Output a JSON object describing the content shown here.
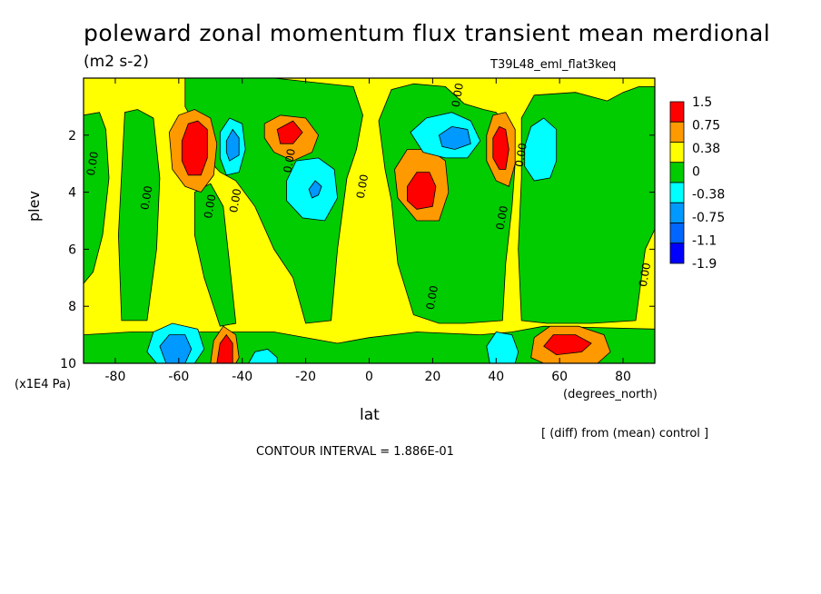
{
  "header": {
    "title": "poleward zonal momentum flux transient mean merdional",
    "units": "(m2 s-2)",
    "dataset": "T39L48_eml_flat3keq"
  },
  "footer": {
    "diff_note": "[ (diff) from (mean) control ]",
    "contour_note": "CONTOUR INTERVAL = 1.886E-01"
  },
  "chart_data": {
    "type": "heatmap",
    "title": "poleward zonal momentum flux transient mean merdional",
    "subtitle": "(m2 s-2)",
    "xlabel": "lat",
    "x_units": "(degrees_north)",
    "ylabel": "plev",
    "y_units": "(x1E4 Pa)",
    "xlim": [
      -90,
      90
    ],
    "ylim": [
      10,
      0
    ],
    "x_ticks": [
      -80,
      -60,
      -40,
      -20,
      0,
      20,
      40,
      60,
      80
    ],
    "y_ticks": [
      2,
      4,
      6,
      8,
      10
    ],
    "legend": {
      "placement": "right",
      "levels": [
        "1.5",
        "0.75",
        "0.38",
        "0",
        "-0.38",
        "-0.75",
        "-1.1",
        "-1.9"
      ],
      "colors": [
        "#ff0000",
        "#ff9900",
        "#ffff00",
        "#00cc00",
        "#00ffff",
        "#0099ff",
        "#0066ff",
        "#0000ff"
      ]
    },
    "colors": {
      "strong_positive": "#ff0000",
      "positive": "#ff9900",
      "weak_positive": "#ffff00",
      "weak_negative": "#00cc00",
      "negative": "#00ffff",
      "strong_negative": "#0099ff"
    },
    "contour_labels": [
      {
        "text": "0.00",
        "lat": -87,
        "plev": 3.0
      },
      {
        "text": "0.00",
        "lat": -70,
        "plev": 4.2
      },
      {
        "text": "0.00",
        "lat": -50,
        "plev": 4.5
      },
      {
        "text": "0.00",
        "lat": -42,
        "plev": 4.3
      },
      {
        "text": "0.00",
        "lat": -25,
        "plev": 2.9
      },
      {
        "text": "0.00",
        "lat": -2,
        "plev": 3.8
      },
      {
        "text": "0.00",
        "lat": 28,
        "plev": 0.6
      },
      {
        "text": "0.00",
        "lat": 20,
        "plev": 7.7
      },
      {
        "text": "0.00",
        "lat": 42,
        "plev": 4.9
      },
      {
        "text": "0.00",
        "lat": 48,
        "plev": 2.7
      },
      {
        "text": "0.00",
        "lat": 87,
        "plev": 6.9
      }
    ],
    "features": [
      {
        "sign": "positive",
        "lat": -55,
        "plev": 2.5,
        "peak": 1.5
      },
      {
        "sign": "negative",
        "lat": -44,
        "plev": 2.3,
        "peak": -1.1
      },
      {
        "sign": "positive",
        "lat": -25,
        "plev": 1.8,
        "peak": 1.5
      },
      {
        "sign": "negative",
        "lat": -18,
        "plev": 3.8,
        "peak": -0.75
      },
      {
        "sign": "positive",
        "lat": 17,
        "plev": 3.8,
        "peak": 1.5
      },
      {
        "sign": "negative",
        "lat": 28,
        "plev": 2.0,
        "peak": -1.1
      },
      {
        "sign": "positive",
        "lat": 42,
        "plev": 2.3,
        "peak": 1.5
      },
      {
        "sign": "negative",
        "lat": 55,
        "plev": 2.5,
        "peak": -0.75
      },
      {
        "sign": "negative",
        "lat": -60,
        "plev": 9.3,
        "peak": -1.1
      },
      {
        "sign": "positive",
        "lat": -45,
        "plev": 9.4,
        "peak": 1.5
      },
      {
        "sign": "negative",
        "lat": -33,
        "plev": 9.7,
        "peak": -0.75
      },
      {
        "sign": "negative",
        "lat": 42,
        "plev": 9.4,
        "peak": -0.75
      },
      {
        "sign": "positive",
        "lat": 62,
        "plev": 9.2,
        "peak": 1.5
      }
    ]
  }
}
